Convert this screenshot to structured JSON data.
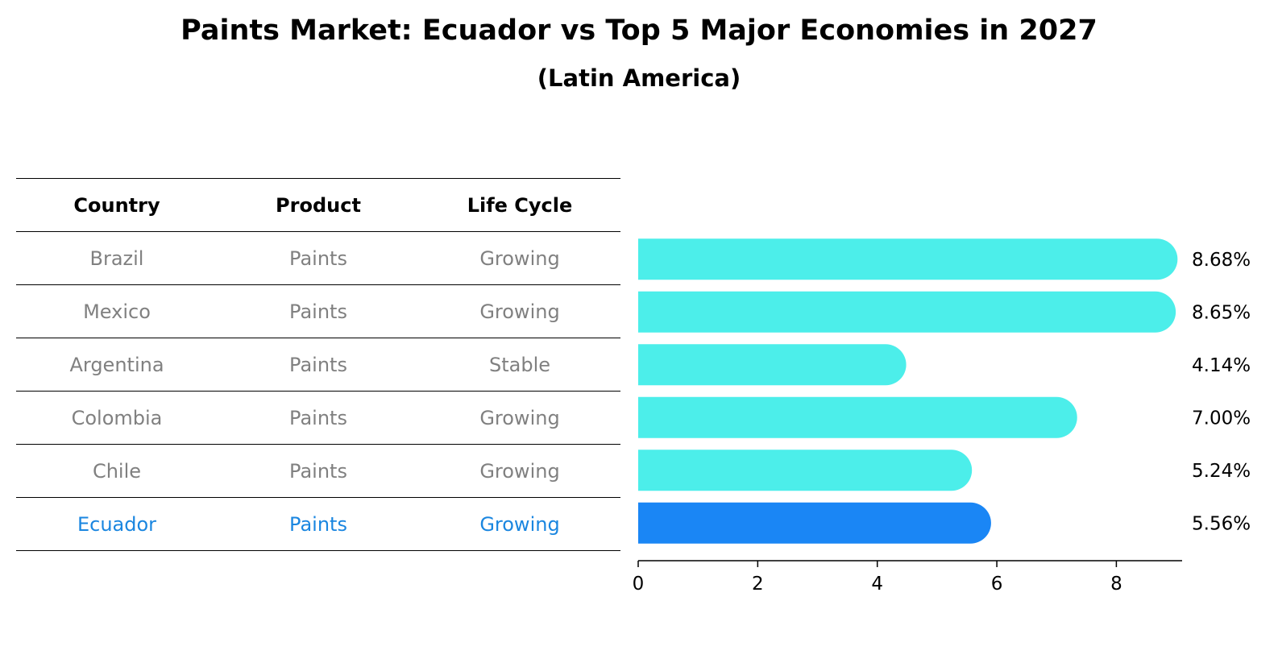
{
  "title": "Paints Market: Ecuador vs Top 5 Major Economies in 2027",
  "subtitle": "(Latin America)",
  "table": {
    "headers": [
      "Country",
      "Product",
      "Life Cycle"
    ],
    "rows": [
      {
        "country": "Brazil",
        "product": "Paints",
        "life_cycle": "Growing"
      },
      {
        "country": "Mexico",
        "product": "Paints",
        "life_cycle": "Growing"
      },
      {
        "country": "Argentina",
        "product": "Paints",
        "life_cycle": "Stable"
      },
      {
        "country": "Colombia",
        "product": "Paints",
        "life_cycle": "Growing"
      },
      {
        "country": "Chile",
        "product": "Paints",
        "life_cycle": "Growing"
      },
      {
        "country": "Ecuador",
        "product": "Paints",
        "life_cycle": "Growing"
      }
    ]
  },
  "colors": {
    "bar": "#4ceeea",
    "highlight": "#1a86f5",
    "highlight_text": "#1a86e0",
    "muted_text": "#808080"
  },
  "chart_data": {
    "type": "bar",
    "orientation": "horizontal",
    "categories": [
      "Brazil",
      "Mexico",
      "Argentina",
      "Colombia",
      "Chile",
      "Ecuador"
    ],
    "values": [
      8.68,
      8.65,
      4.14,
      7.0,
      5.24,
      5.56
    ],
    "value_labels": [
      "8.68%",
      "8.65%",
      "4.14%",
      "7.00%",
      "5.24%",
      "5.56%"
    ],
    "highlight": "Ecuador",
    "xticks": [
      0,
      2,
      4,
      6,
      8
    ],
    "xlim": [
      0,
      9.1
    ],
    "grid": false
  }
}
